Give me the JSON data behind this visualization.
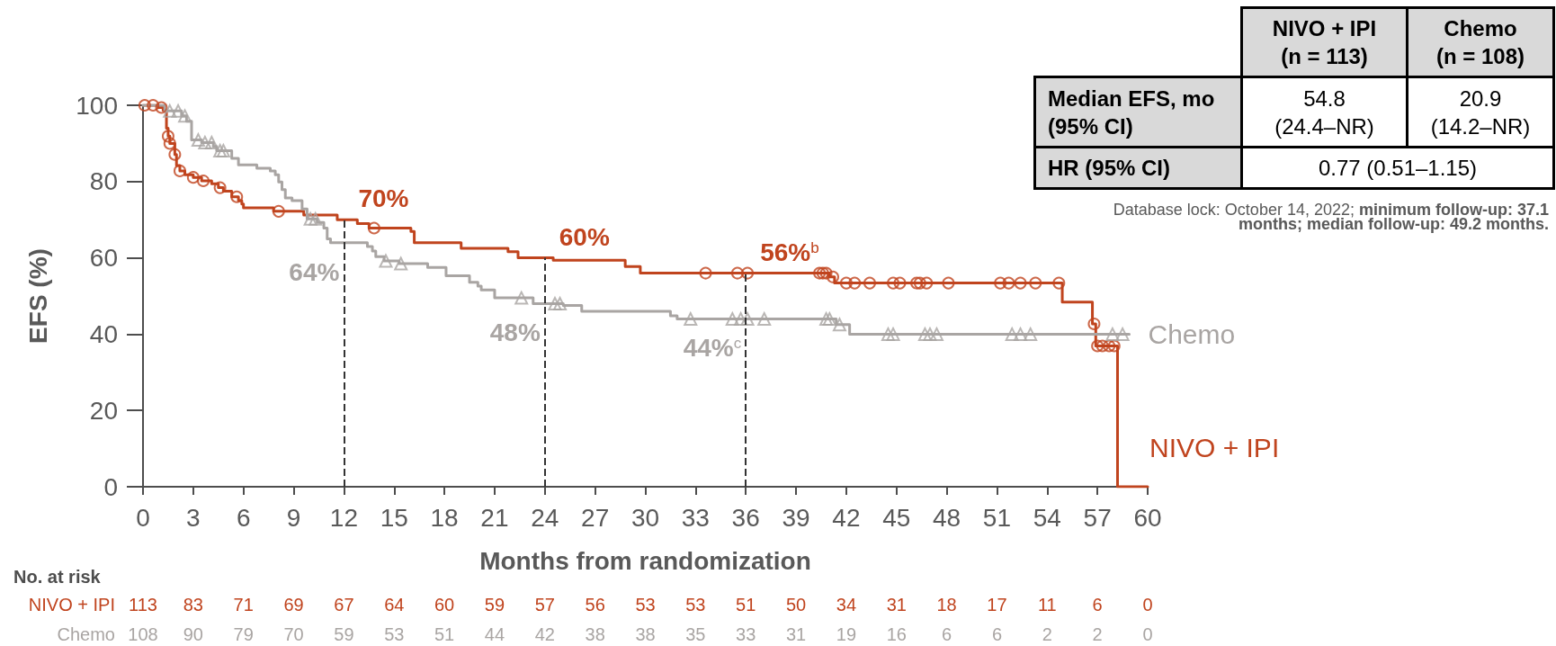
{
  "chart_data": [
    {
      "type": "step",
      "xlabel": "Months from randomization",
      "ylabel": "EFS (%)",
      "xlim": [
        0,
        60
      ],
      "xticks": [
        0,
        3,
        6,
        9,
        12,
        15,
        18,
        21,
        24,
        27,
        30,
        33,
        36,
        39,
        42,
        45,
        48,
        51,
        54,
        57,
        60
      ],
      "ylim": [
        0,
        100
      ],
      "yticks": [
        0,
        20,
        40,
        60,
        80,
        100
      ],
      "series": [
        {
          "name": "NIVO + IPI",
          "type": "step",
          "color": "#c0441e",
          "marker": "none",
          "x": [
            0,
            0.9,
            1.2,
            1.4,
            1.5,
            1.6,
            1.9,
            2.0,
            2.2,
            2.5,
            3.0,
            3.5,
            4.1,
            4.5,
            4.8,
            5.3,
            5.7,
            5.9,
            6.0,
            7.8,
            9.6,
            11.6,
            12.8,
            13.5,
            16.0,
            16.2,
            19.0,
            21.8,
            22.4,
            24.5,
            28.8,
            29.7,
            41.0,
            41.3,
            54.9,
            56.7,
            56.9,
            58.2,
            60
          ],
          "values": [
            100,
            99.4,
            98.7,
            94,
            91.9,
            90,
            87.1,
            84.2,
            82.8,
            81.8,
            81.1,
            80.2,
            79.4,
            78.4,
            77.5,
            76,
            75,
            74.1,
            73.1,
            72.2,
            71.2,
            70,
            69,
            67.8,
            66.9,
            64,
            62.5,
            61.6,
            60,
            59.4,
            57.7,
            56,
            55,
            53.4,
            48.4,
            42.7,
            36.9,
            0,
            0
          ]
        },
        {
          "name": "Chemo",
          "type": "step",
          "color": "#a9a5a3",
          "marker": "none",
          "x": [
            0,
            1.3,
            2.3,
            2.6,
            2.9,
            3.5,
            4.2,
            4.4,
            5.3,
            5.7,
            6.8,
            7.6,
            7.9,
            8.1,
            8.3,
            8.5,
            8.9,
            9.5,
            9.8,
            10.4,
            10.8,
            11.0,
            11.2,
            13.4,
            13.7,
            13.9,
            14.4,
            15.3,
            17.0,
            18.1,
            19.5,
            20.0,
            20.2,
            21.0,
            23.3,
            25.1,
            26.2,
            31.5,
            31.9,
            41.4,
            42.2,
            58.9
          ],
          "values": [
            100,
            98.5,
            97.2,
            95.8,
            90.9,
            90.2,
            89.2,
            88.1,
            86.1,
            84.4,
            83.5,
            82.8,
            81.8,
            79.9,
            77.9,
            75.7,
            75,
            72.8,
            70.2,
            69.3,
            67.8,
            65,
            64,
            63,
            61.8,
            60.3,
            59.2,
            58.5,
            57.5,
            55.3,
            53.6,
            52.6,
            51.6,
            49.5,
            48,
            47.5,
            46,
            44.8,
            44,
            42.5,
            40,
            40
          ]
        },
        {
          "type": "scatter",
          "color": "#c0441e",
          "marker": "circle",
          "x": [
            0.1,
            0.6,
            1.1,
            1.5,
            1.6,
            1.9,
            2.2,
            3.0,
            3.6,
            4.6,
            5.6,
            8.1,
            13.8,
            33.6,
            35.5,
            36.1,
            40.4,
            40.6,
            40.8,
            41.2,
            42.0,
            42.5,
            43.4,
            44.8,
            45.2,
            46.2,
            46.4,
            46.8,
            48.1,
            51.2,
            51.7,
            52.4,
            53.3,
            54.7,
            56.8,
            57.0,
            57.3,
            57.7,
            58.0
          ],
          "values": [
            100,
            100,
            99.4,
            91.9,
            90,
            87.1,
            82.8,
            81.1,
            80.2,
            78.4,
            76,
            72.2,
            67.8,
            56,
            56,
            56,
            56,
            56,
            56,
            55,
            53.4,
            53.4,
            53.4,
            53.4,
            53.4,
            53.4,
            53.4,
            53.4,
            53.4,
            53.4,
            53.4,
            53.4,
            53.4,
            53.4,
            42.7,
            36.9,
            36.9,
            36.9,
            36.9
          ]
        },
        {
          "type": "scatter",
          "color": "#a9a5a3",
          "marker": "triangle",
          "x": [
            1.6,
            2.1,
            2.5,
            3.3,
            3.7,
            4.1,
            4.6,
            4.8,
            10.0,
            10.3,
            14.5,
            15.4,
            22.6,
            24.6,
            24.9,
            32.7,
            35.2,
            35.7,
            36.1,
            37.1,
            40.8,
            41.0,
            41.6,
            44.5,
            44.8,
            46.7,
            47.0,
            47.4,
            51.9,
            52.4,
            53.0,
            57.9,
            58.5
          ],
          "values": [
            98.5,
            98.5,
            97.2,
            90.9,
            90.2,
            90.2,
            88.1,
            88.1,
            70.2,
            70.2,
            59.2,
            58.5,
            49.5,
            48,
            48,
            44,
            44,
            44,
            44,
            44,
            44,
            44,
            42.5,
            40,
            40,
            40,
            40,
            40,
            40,
            40,
            40,
            40,
            40
          ]
        }
      ],
      "ref_lines": [
        {
          "axis": "x",
          "value": 12,
          "color": "#333333",
          "line_style": "dashed"
        },
        {
          "axis": "x",
          "value": 24,
          "color": "#333333",
          "line_style": "dashed"
        },
        {
          "axis": "x",
          "value": 36,
          "color": "#333333",
          "line_style": "dashed"
        }
      ],
      "annotations": [
        {
          "text": "70%",
          "x": 12,
          "y": 70
        },
        {
          "text": "64%",
          "x": 12,
          "y": 64
        },
        {
          "text": "60%",
          "x": 24,
          "y": 60
        },
        {
          "text": "48%",
          "x": 24,
          "y": 48
        },
        {
          "text": "56%$^{b}$",
          "x": 36,
          "y": 56
        },
        {
          "text": "44%$^{c}$",
          "x": 36,
          "y": 44
        },
        "No. at risk",
        "113 83 71 69 67 64 60 59 57 56 53 53 51 50 34 31 18 17 11 6 0",
        "108 90 79 70 59 53 51 44 42 38 38 35 33 31 19 16 6 6 2 2 0"
      ]
    },
    {
      "type": "other",
      "annotations": [
        "NIVO + IPI",
        "(n = 113)",
        "Chemo",
        "(n = 108)",
        "Median EFS, mo",
        "(95% CI)",
        "54.8",
        "(24.4–NR)",
        "20.9",
        "(14.2–NR)",
        "HR (95% CI)",
        "0.77 (0.51–1.15)",
        "Database lock: October 14, 2022;",
        "minimum follow-up: 37.1",
        "months; median follow-up: 49.2 months."
      ]
    }
  ]
}
